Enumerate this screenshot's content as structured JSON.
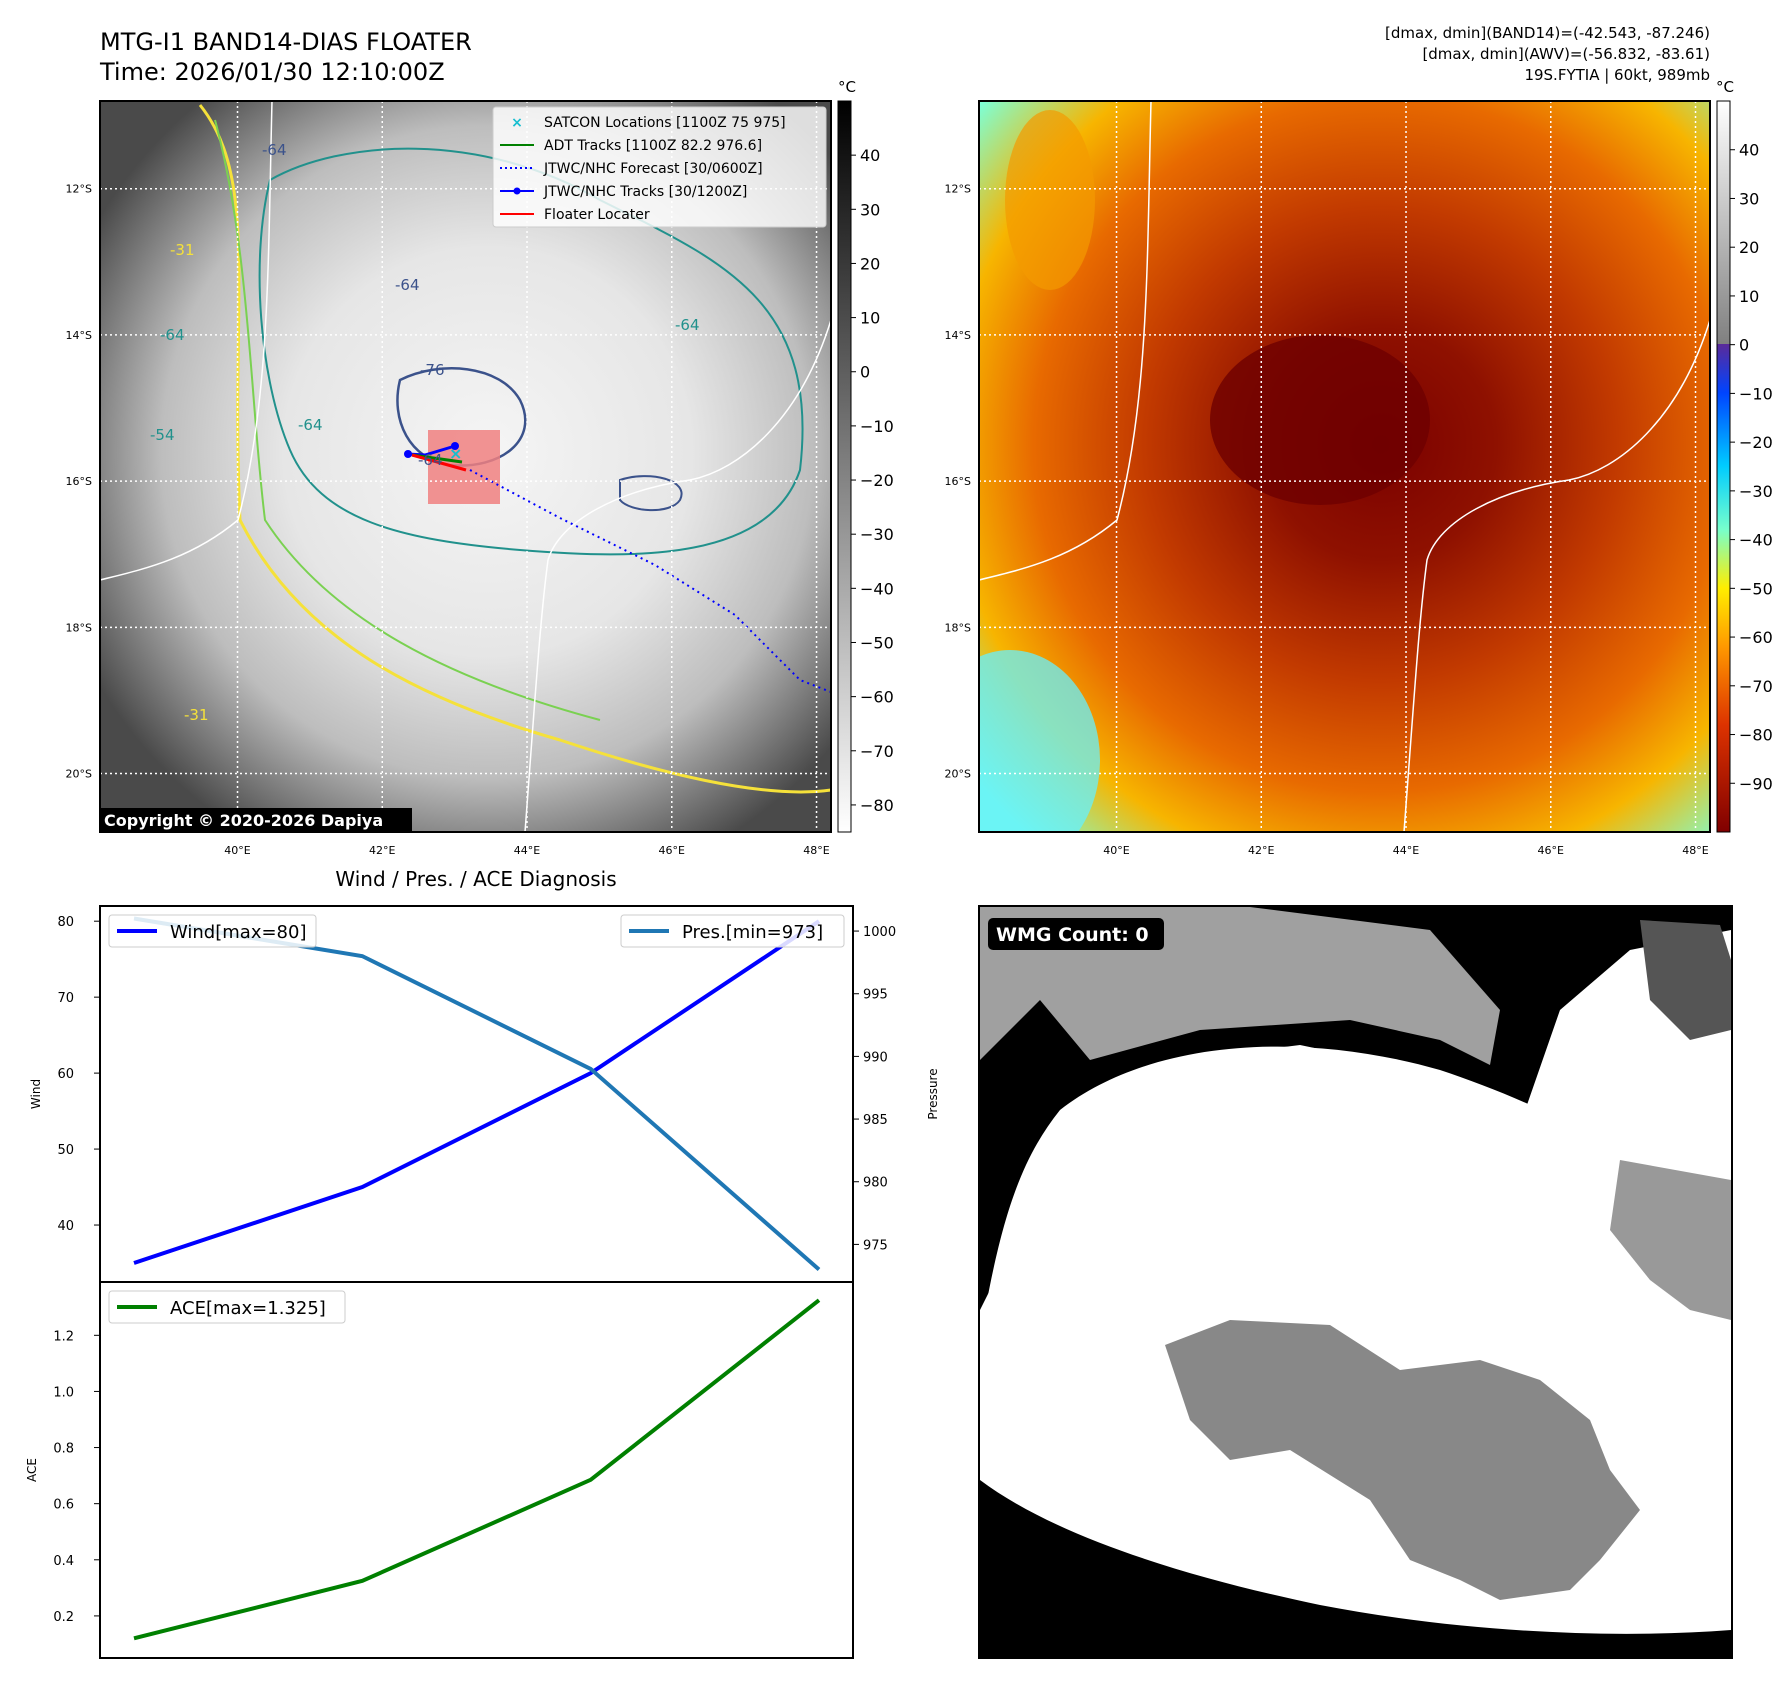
{
  "header": {
    "title_line1": "MTG-I1 BAND14-DIAS FLOATER",
    "title_line2": "Time: 2026/01/30 12:10:00Z",
    "right_line1": "[dmax, dmin](BAND14)=(-42.543, -87.246)",
    "right_line2": "[dmax, dmin](AWV)=(-56.832, -83.61)",
    "right_line3": "19S.FYTIA | 60kt, 989mb"
  },
  "map_axes": {
    "lat_labels": [
      "12°S",
      "14°S",
      "16°S",
      "18°S",
      "20°S"
    ],
    "lon_labels": [
      "40°E",
      "42°E",
      "44°E",
      "46°E",
      "48°E"
    ],
    "lat_range": [
      -20.8,
      -10.8
    ],
    "lon_range": [
      38.1,
      48.2
    ]
  },
  "left_map": {
    "copyright": "Copyright © 2020-2026 Dapiya",
    "colorbar_unit": "°C",
    "colorbar_ticks": [
      "40",
      "30",
      "20",
      "10",
      "0",
      "−10",
      "−20",
      "−30",
      "−40",
      "−50",
      "−60",
      "−70",
      "−80"
    ],
    "colorbar_tick_values": [
      40,
      30,
      20,
      10,
      0,
      -10,
      -20,
      -30,
      -40,
      -50,
      -60,
      -70,
      -80
    ],
    "colorbar_range": [
      -85,
      50
    ],
    "contour_labels": [
      "-64",
      "-64",
      "-64",
      "-76",
      "-64",
      "-64",
      "-31",
      "-64",
      "-31",
      "-54"
    ],
    "legend": [
      {
        "label": "SATCON Locations [1100Z 75 975]",
        "color": "#17becf",
        "style": "x-marker"
      },
      {
        "label": "ADT Tracks [1100Z 82.2 976.6]",
        "color": "#008000",
        "style": "solid"
      },
      {
        "label": "JTWC/NHC Forecast [30/0600Z]",
        "color": "#0000ff",
        "style": "dotted"
      },
      {
        "label": "JTWC/NHC Tracks [30/1200Z]",
        "color": "#0000ff",
        "style": "solid-dot"
      },
      {
        "label": "Floater Locater",
        "color": "#ff0000",
        "style": "solid"
      }
    ],
    "forecast_track": [
      [
        15.9,
        43.2
      ],
      [
        16.4,
        44.3
      ],
      [
        17.0,
        45.5
      ],
      [
        17.6,
        46.6
      ],
      [
        18.3,
        47.6
      ],
      [
        18.8,
        48.2
      ]
    ],
    "jtwc_track": [
      [
        15.6,
        42.6
      ],
      [
        15.6,
        42.8
      ],
      [
        15.45,
        43.0
      ]
    ]
  },
  "right_map": {
    "colorbar_unit": "°C",
    "colorbar_ticks": [
      "40",
      "30",
      "20",
      "10",
      "0",
      "−10",
      "−20",
      "−30",
      "−40",
      "−50",
      "−60",
      "−70",
      "−80",
      "−90"
    ],
    "colorbar_tick_values": [
      40,
      30,
      20,
      10,
      0,
      -10,
      -20,
      -30,
      -40,
      -50,
      -60,
      -70,
      -80,
      -90
    ],
    "colorbar_range": [
      -100,
      50
    ]
  },
  "diagnosis": {
    "title": "Wind / Pres. / ACE Diagnosis",
    "wind_ylabel": "Wind",
    "pressure_ylabel": "Pressure",
    "ace_ylabel": "ACE",
    "wind_legend": "Wind[max=80]",
    "pressure_legend": "Pres.[min=973]",
    "ace_legend": "ACE[max=1.325]",
    "wind_ticks": [
      "80",
      "70",
      "60",
      "50",
      "40"
    ],
    "pressure_ticks": [
      "1000",
      "995",
      "990",
      "985",
      "980",
      "975"
    ],
    "ace_ticks": [
      "1.2",
      "1.0",
      "0.8",
      "0.6",
      "0.4",
      "0.2"
    ]
  },
  "wmg": {
    "label": "WMG Count: 0"
  },
  "chart_data": [
    {
      "type": "line",
      "title": "Wind / Pres. / ACE Diagnosis",
      "x": [
        0,
        1,
        2,
        3
      ],
      "series": [
        {
          "name": "Wind[max=80]",
          "axis": "left",
          "color": "#0000ff",
          "values": [
            35,
            45,
            60,
            80
          ]
        },
        {
          "name": "Pres.[min=973]",
          "axis": "right",
          "color": "#1f77b4",
          "values": [
            1001,
            998,
            989,
            973
          ]
        }
      ],
      "ylabel": "Wind",
      "y2label": "Pressure",
      "ylim": [
        32.5,
        82
      ],
      "y2lim": [
        972,
        1002
      ],
      "grid": false,
      "legend": [
        "upper left",
        "upper right"
      ]
    },
    {
      "type": "line",
      "x": [
        0,
        1,
        2,
        3
      ],
      "series": [
        {
          "name": "ACE[max=1.325]",
          "color": "#008000",
          "values": [
            0.12,
            0.325,
            0.685,
            1.325
          ]
        }
      ],
      "ylabel": "ACE",
      "ylim": [
        0.05,
        1.39
      ],
      "grid": false,
      "legend": "upper left"
    }
  ]
}
